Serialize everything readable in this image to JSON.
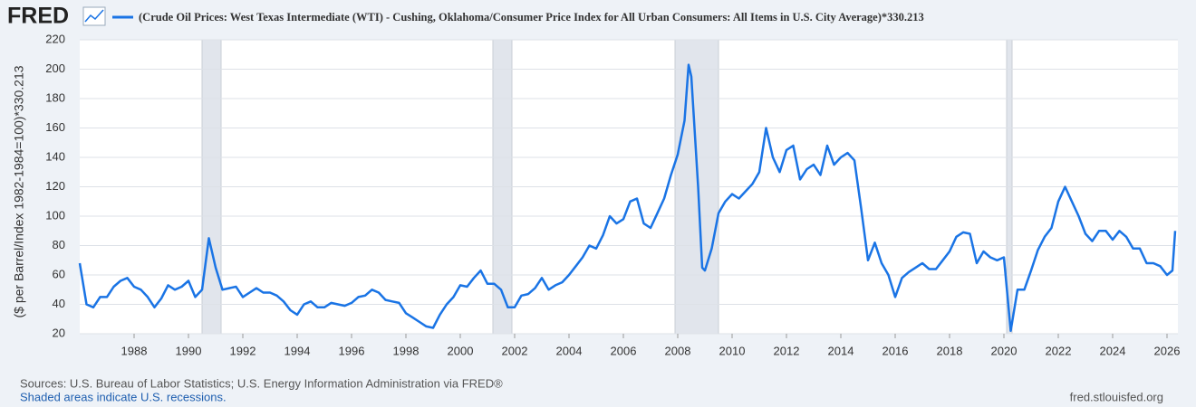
{
  "logo": "FRED",
  "chart_data": {
    "type": "line",
    "ylabel": "($ per Barrel/Index 1982-1984=100)*330.213",
    "xlim": [
      1986,
      2026.4
    ],
    "xticks": [
      1988,
      1990,
      1992,
      1994,
      1996,
      1998,
      2000,
      2002,
      2004,
      2006,
      2008,
      2010,
      2012,
      2014,
      2016,
      2018,
      2020,
      2022,
      2024,
      2026
    ],
    "ylim": [
      20,
      220
    ],
    "yticks": [
      20,
      40,
      60,
      80,
      100,
      120,
      140,
      160,
      180,
      200,
      220
    ],
    "grid": true,
    "recessions": [
      [
        1990.5,
        1991.2
      ],
      [
        2001.2,
        2001.9
      ],
      [
        2007.9,
        2009.5
      ],
      [
        2020.1,
        2020.3
      ]
    ],
    "recession_color": "#e1e5ec",
    "x": [
      1986.0,
      1986.25,
      1986.5,
      1986.75,
      1987.0,
      1987.25,
      1987.5,
      1987.75,
      1988.0,
      1988.25,
      1988.5,
      1988.75,
      1989.0,
      1989.25,
      1989.5,
      1989.75,
      1990.0,
      1990.25,
      1990.5,
      1990.75,
      1991.0,
      1991.25,
      1991.5,
      1991.75,
      1992.0,
      1992.25,
      1992.5,
      1992.75,
      1993.0,
      1993.25,
      1993.5,
      1993.75,
      1994.0,
      1994.25,
      1994.5,
      1994.75,
      1995.0,
      1995.25,
      1995.5,
      1995.75,
      1996.0,
      1996.25,
      1996.5,
      1996.75,
      1997.0,
      1997.25,
      1997.5,
      1997.75,
      1998.0,
      1998.25,
      1998.5,
      1998.75,
      1999.0,
      1999.25,
      1999.5,
      1999.75,
      2000.0,
      2000.25,
      2000.5,
      2000.75,
      2001.0,
      2001.25,
      2001.5,
      2001.75,
      2002.0,
      2002.25,
      2002.5,
      2002.75,
      2003.0,
      2003.25,
      2003.5,
      2003.75,
      2004.0,
      2004.25,
      2004.5,
      2004.75,
      2005.0,
      2005.25,
      2005.5,
      2005.75,
      2006.0,
      2006.25,
      2006.5,
      2006.75,
      2007.0,
      2007.25,
      2007.5,
      2007.75,
      2008.0,
      2008.25,
      2008.4,
      2008.5,
      2008.75,
      2008.9,
      2009.0,
      2009.25,
      2009.5,
      2009.75,
      2010.0,
      2010.25,
      2010.5,
      2010.75,
      2011.0,
      2011.25,
      2011.5,
      2011.75,
      2012.0,
      2012.25,
      2012.5,
      2012.75,
      2013.0,
      2013.25,
      2013.5,
      2013.75,
      2014.0,
      2014.25,
      2014.5,
      2014.75,
      2015.0,
      2015.25,
      2015.5,
      2015.75,
      2016.0,
      2016.25,
      2016.5,
      2016.75,
      2017.0,
      2017.25,
      2017.5,
      2017.75,
      2018.0,
      2018.25,
      2018.5,
      2018.75,
      2019.0,
      2019.25,
      2019.5,
      2019.75,
      2020.0,
      2020.25,
      2020.5,
      2020.75,
      2021.0,
      2021.25,
      2021.5,
      2021.75,
      2022.0,
      2022.25,
      2022.5,
      2022.75,
      2023.0,
      2023.25,
      2023.5,
      2023.75,
      2024.0,
      2024.25,
      2024.5,
      2024.75,
      2025.0,
      2025.25,
      2025.5,
      2025.75,
      2026.0,
      2026.2,
      2026.3
    ],
    "series": [
      {
        "name": "(Crude Oil Prices: West Texas Intermediate (WTI) - Cushing, Oklahoma/Consumer Price Index for All Urban Consumers: All Items in U.S. City Average)*330.213",
        "color": "#1a74e5",
        "values": [
          68,
          40,
          38,
          45,
          45,
          52,
          56,
          58,
          52,
          50,
          45,
          38,
          44,
          53,
          50,
          52,
          56,
          45,
          50,
          85,
          65,
          50,
          51,
          52,
          45,
          48,
          51,
          48,
          48,
          46,
          42,
          36,
          33,
          40,
          42,
          38,
          38,
          41,
          40,
          39,
          41,
          45,
          46,
          50,
          48,
          43,
          42,
          41,
          34,
          31,
          28,
          25,
          24,
          33,
          40,
          45,
          53,
          52,
          58,
          63,
          54,
          54,
          50,
          38,
          38,
          46,
          47,
          51,
          58,
          50,
          53,
          55,
          60,
          66,
          72,
          80,
          78,
          87,
          100,
          95,
          98,
          110,
          112,
          95,
          92,
          102,
          112,
          128,
          142,
          165,
          203,
          195,
          120,
          65,
          63,
          78,
          102,
          110,
          115,
          112,
          117,
          122,
          130,
          160,
          140,
          130,
          145,
          148,
          125,
          132,
          135,
          128,
          148,
          135,
          140,
          143,
          138,
          105,
          70,
          82,
          68,
          60,
          45,
          58,
          62,
          65,
          68,
          64,
          64,
          70,
          76,
          86,
          89,
          88,
          68,
          76,
          72,
          70,
          72,
          22,
          50,
          50,
          63,
          77,
          86,
          92,
          110,
          120,
          110,
          100,
          88,
          83,
          90,
          90,
          84,
          90,
          86,
          78,
          78,
          68,
          68,
          66,
          60,
          63,
          90
        ]
      }
    ]
  },
  "footer": {
    "sources": "Sources: U.S. Bureau of Labor Statistics; U.S. Energy Information Administration via FRED®",
    "note": "Shaded areas indicate U.S. recessions.",
    "url": "fred.stlouisfed.org"
  }
}
